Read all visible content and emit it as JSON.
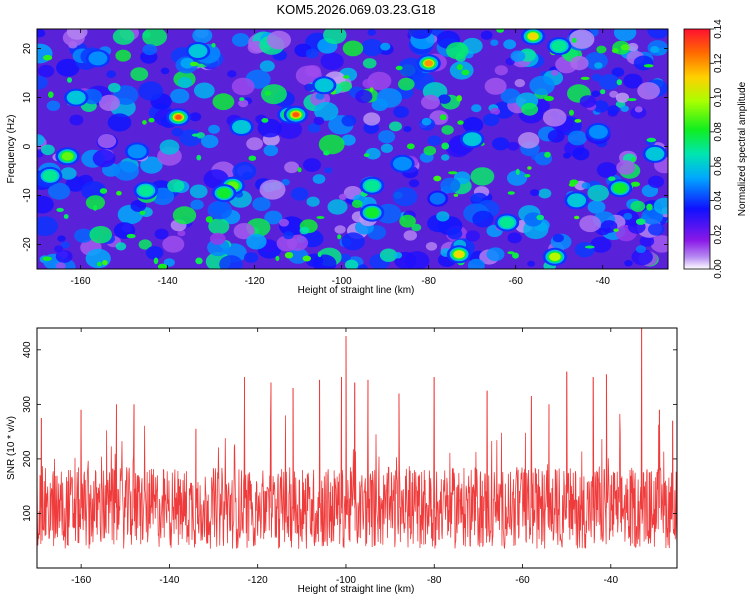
{
  "title": "KOM5.2026.069.03.23.G18",
  "chart_data": [
    {
      "type": "heatmap",
      "title": "KOM5.2026.069.03.23.G18",
      "xlabel": "Height of straight line (km)",
      "ylabel": "Frequency (Hz)",
      "xlim": [
        -170,
        -25
      ],
      "ylim": [
        -25,
        24
      ],
      "xticks": [
        "-160",
        "-140",
        "-120",
        "-100",
        "-80",
        "-60",
        "-40"
      ],
      "yticks": [
        "-20",
        "-10",
        "0",
        "10",
        "20"
      ],
      "colorbar": {
        "label": "Normalized spectral amplitude",
        "range": [
          0,
          0.14
        ],
        "ticks": [
          "0.00",
          "0.02",
          "0.04",
          "0.06",
          "0.08",
          "0.10",
          "0.12",
          "0.14"
        ]
      },
      "hotspots": [
        {
          "x": -137.5,
          "y": 6.0,
          "value": 0.13
        },
        {
          "x": -112.0,
          "y": 6.5,
          "value": 0.135
        },
        {
          "x": -110.5,
          "y": 6.5,
          "value": 0.13
        },
        {
          "x": -80.0,
          "y": 17.0,
          "value": 0.12
        },
        {
          "x": -56.0,
          "y": 22.5,
          "value": 0.11
        },
        {
          "x": -73.0,
          "y": -22.0,
          "value": 0.11
        },
        {
          "x": -51.0,
          "y": -22.5,
          "value": 0.1
        },
        {
          "x": -125.0,
          "y": -8.0,
          "value": 0.09
        },
        {
          "x": -163.0,
          "y": -2.0,
          "value": 0.09
        },
        {
          "x": -127.0,
          "y": -9.5,
          "value": 0.08
        },
        {
          "x": -93.0,
          "y": -13.5,
          "value": 0.08
        },
        {
          "x": -36.0,
          "y": -8.5,
          "value": 0.08
        },
        {
          "x": -145.0,
          "y": -9.0,
          "value": 0.07
        },
        {
          "x": -167.0,
          "y": -6.0,
          "value": 0.07
        },
        {
          "x": -50.0,
          "y": 20.5,
          "value": 0.07
        },
        {
          "x": -93.0,
          "y": -8.0,
          "value": 0.07
        },
        {
          "x": -62.0,
          "y": -15.5,
          "value": 0.07
        },
        {
          "x": -133.0,
          "y": 19.5,
          "value": 0.06
        },
        {
          "x": -123.0,
          "y": 4.0,
          "value": 0.06
        },
        {
          "x": -161.0,
          "y": 10.0,
          "value": 0.06
        },
        {
          "x": -46.0,
          "y": -11.0,
          "value": 0.06
        },
        {
          "x": -104.0,
          "y": 12.5,
          "value": 0.06
        },
        {
          "x": -70.0,
          "y": 1.5,
          "value": 0.06
        },
        {
          "x": -28.0,
          "y": -1.5,
          "value": 0.06
        },
        {
          "x": -156.0,
          "y": 18.0,
          "value": 0.05
        },
        {
          "x": -147.0,
          "y": -1.0,
          "value": 0.05
        },
        {
          "x": -86.0,
          "y": -3.5,
          "value": 0.05
        },
        {
          "x": -41.0,
          "y": 3.0,
          "value": 0.05
        }
      ]
    },
    {
      "type": "line",
      "xlabel": "Height of straight line (km)",
      "ylabel": "SNR (10 * v/v)",
      "xlim": [
        -170,
        -25
      ],
      "ylim": [
        0,
        440
      ],
      "xticks": [
        "-160",
        "-140",
        "-120",
        "-100",
        "-80",
        "-60",
        "-40"
      ],
      "yticks": [
        "100",
        "200",
        "300",
        "400"
      ],
      "color": "#ef3b3b",
      "baseline_mean": 110,
      "notable_peaks": [
        {
          "x": -169.0,
          "y": 275
        },
        {
          "x": -160.0,
          "y": 290
        },
        {
          "x": -152.0,
          "y": 300
        },
        {
          "x": -148.0,
          "y": 300
        },
        {
          "x": -134.0,
          "y": 255
        },
        {
          "x": -123.0,
          "y": 350
        },
        {
          "x": -117.0,
          "y": 340
        },
        {
          "x": -112.0,
          "y": 330
        },
        {
          "x": -106.0,
          "y": 345
        },
        {
          "x": -101.0,
          "y": 350
        },
        {
          "x": -100.0,
          "y": 425
        },
        {
          "x": -98.0,
          "y": 340
        },
        {
          "x": -95.0,
          "y": 345
        },
        {
          "x": -88.0,
          "y": 320
        },
        {
          "x": -80.0,
          "y": 350
        },
        {
          "x": -68.0,
          "y": 325
        },
        {
          "x": -58.0,
          "y": 315
        },
        {
          "x": -54.0,
          "y": 300
        },
        {
          "x": -50.0,
          "y": 360
        },
        {
          "x": -44.0,
          "y": 350
        },
        {
          "x": -41.0,
          "y": 355
        },
        {
          "x": -33.0,
          "y": 440
        },
        {
          "x": -29.0,
          "y": 290
        },
        {
          "x": -26.0,
          "y": 270
        }
      ]
    }
  ]
}
